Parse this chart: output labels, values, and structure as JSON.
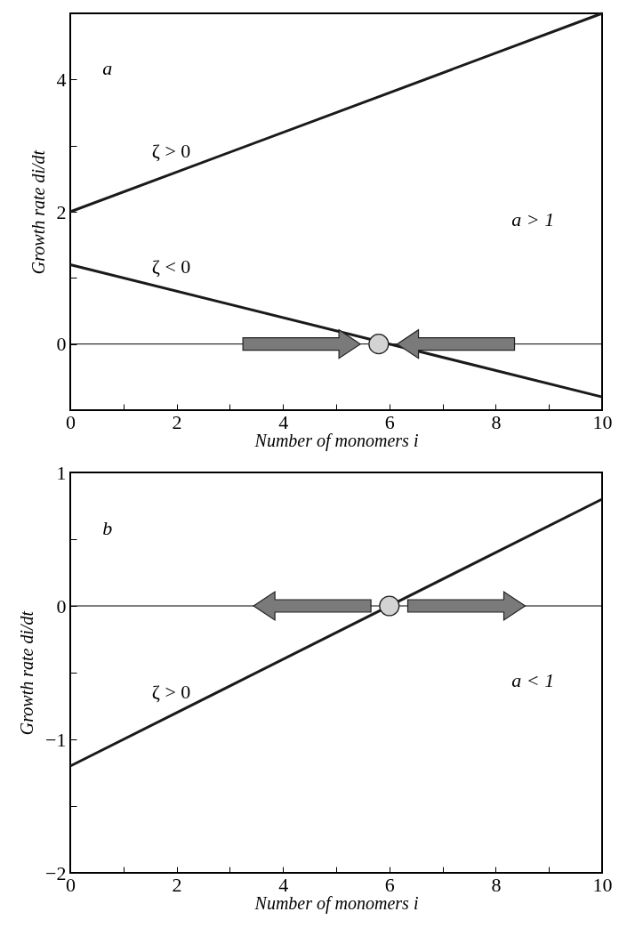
{
  "chart_data": [
    {
      "type": "line",
      "xlabel": "Number of monomers i",
      "ylabel": "Growth rate di/dt",
      "xlim": [
        0,
        10
      ],
      "ylim": [
        -1,
        5
      ],
      "xticks": [
        0,
        {
          "value": 1,
          "label": null
        },
        2,
        {
          "value": 3,
          "label": null
        },
        4,
        {
          "value": 5,
          "label": null
        },
        6,
        {
          "value": 7,
          "label": null
        },
        8,
        {
          "value": 9,
          "label": null
        },
        10
      ],
      "yticks": [
        0,
        {
          "value": 1,
          "label": null
        },
        2,
        {
          "value": 3,
          "label": null
        },
        4
      ],
      "series": [
        {
          "type": "line",
          "name": "ζ > 0",
          "color": "#1a1a1a",
          "x": [
            0,
            10
          ],
          "values": [
            2,
            5
          ]
        },
        {
          "type": "line",
          "name": "ζ < 0",
          "color": "#1a1a1a",
          "x": [
            0,
            10
          ],
          "values": [
            1.2,
            -0.8
          ]
        },
        {
          "type": "scatter",
          "marker": "circle",
          "color": "#d3d3d3",
          "x": [
            5.8
          ],
          "values": [
            0
          ]
        }
      ],
      "ref_lines": [
        {
          "axis": "y",
          "value": 0,
          "label": null
        }
      ],
      "annotations": [
        "a",
        "a > 1"
      ]
    },
    {
      "type": "line",
      "xlabel": "Number of monomers i",
      "ylabel": "Growth rate di/dt",
      "xlim": [
        0,
        10
      ],
      "ylim": [
        -2,
        1
      ],
      "xticks": [
        0,
        {
          "value": 1,
          "label": null
        },
        2,
        {
          "value": 3,
          "label": null
        },
        4,
        {
          "value": 5,
          "label": null
        },
        6,
        {
          "value": 7,
          "label": null
        },
        8,
        {
          "value": 9,
          "label": null
        },
        10
      ],
      "yticks": [
        -2,
        {
          "value": -1.5,
          "label": null
        },
        -1,
        {
          "value": -0.5,
          "label": null
        },
        0,
        {
          "value": 0.5,
          "label": null
        },
        1
      ],
      "series": [
        {
          "type": "line",
          "name": "ζ > 0",
          "color": "#1a1a1a",
          "x": [
            0,
            10
          ],
          "values": [
            -1.2,
            0.8
          ]
        },
        {
          "type": "scatter",
          "marker": "circle",
          "color": "#d3d3d3",
          "x": [
            6
          ],
          "values": [
            0
          ]
        }
      ],
      "ref_lines": [
        {
          "axis": "y",
          "value": 0,
          "label": null
        }
      ],
      "annotations": [
        "b",
        "a < 1"
      ]
    }
  ]
}
